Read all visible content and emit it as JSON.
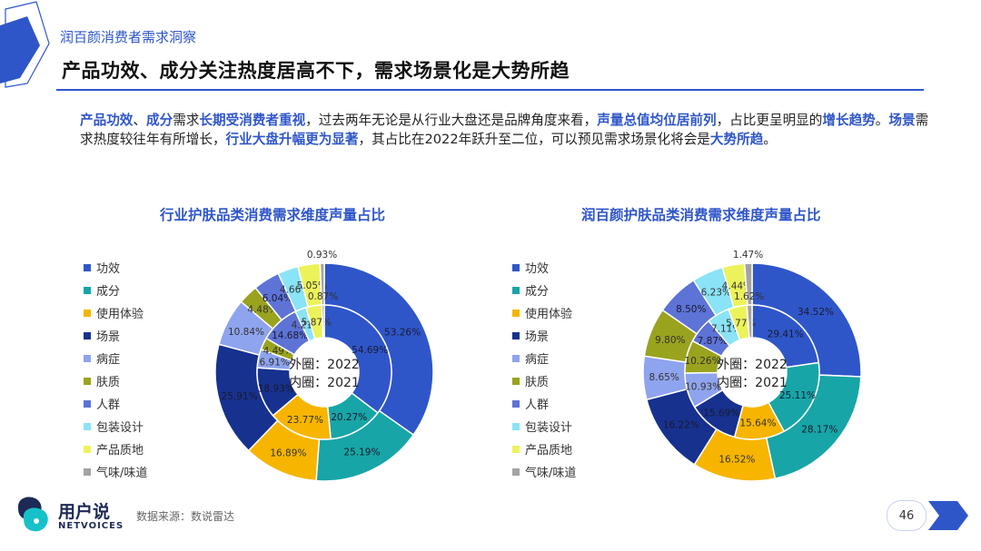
{
  "header": {
    "section_title": "润百颜消费者需求洞察",
    "page_title": "产品功效、成分关注热度居高不下，需求场景化是大势所趋"
  },
  "summary": [
    {
      "t": "产品功效",
      "hl": true
    },
    {
      "t": "、",
      "hl": false
    },
    {
      "t": "成分",
      "hl": true
    },
    {
      "t": "需求",
      "hl": false
    },
    {
      "t": "长期受消费者重视",
      "hl": true
    },
    {
      "t": "，过去两年无论是从行业大盘还是品牌角度来看，",
      "hl": false
    },
    {
      "t": "声量总值均位居前列",
      "hl": true
    },
    {
      "t": "，占比更呈明显的",
      "hl": false
    },
    {
      "t": "增长趋势",
      "hl": true
    },
    {
      "t": "。",
      "hl": false
    },
    {
      "t": "场景",
      "hl": true
    },
    {
      "t": "需求热度较往年有所增长，",
      "hl": false
    },
    {
      "t": "行业大盘升幅更为显著",
      "hl": true
    },
    {
      "t": "，其占比在2022年跃升至二位，可以预见需求场景化将会是",
      "hl": false
    },
    {
      "t": "大势所趋",
      "hl": true
    },
    {
      "t": "。",
      "hl": false
    }
  ],
  "legend_labels": [
    "功效",
    "成分",
    "使用体验",
    "场景",
    "病症",
    "肤质",
    "人群",
    "包装设计",
    "产品质地",
    "气味/味道"
  ],
  "colors": [
    "#2f56c9",
    "#17a5a7",
    "#f7b500",
    "#17318f",
    "#8fa4ee",
    "#99a31e",
    "#5d73d6",
    "#8ae3f6",
    "#ecf35a",
    "#a3a3a3"
  ],
  "chart_data": [
    {
      "type": "donut",
      "title": "行业护肤品类消费需求维度声量占比",
      "center_text": [
        "外圈：2022",
        "内圈：2021"
      ],
      "categories": [
        "功效",
        "成分",
        "使用体验",
        "场景",
        "病症",
        "肤质",
        "人群",
        "包装设计",
        "产品质地",
        "气味/味道"
      ],
      "series": [
        {
          "name": "外圈：2022",
          "values": [
            53.26,
            25.19,
            16.89,
            25.91,
            10.84,
            4.48,
            6.04,
            4.66,
            5.05,
            0.93
          ],
          "labels": [
            "53.26%",
            "25.19%",
            "16.89%",
            "25.91%",
            "10.84%",
            "4.48%",
            "6.04%",
            "4.66%",
            "5.05%",
            "0.93%"
          ]
        },
        {
          "name": "内圈：2021",
          "values": [
            54.69,
            20.27,
            23.77,
            18.93,
            6.91,
            4.49,
            14.68,
            4.21,
            5.87,
            0.87
          ],
          "labels": [
            "54.69%",
            "20.27%",
            "23.77%",
            "18.93%",
            "6.91%",
            "4.49%",
            "14.68%",
            "4.21%",
            "5.87%",
            "0.87%"
          ]
        }
      ]
    },
    {
      "type": "donut",
      "title": "润百颜护肤品类消费需求维度声量占比",
      "center_text": [
        "外圈：2022",
        "内圈：2021"
      ],
      "categories": [
        "功效",
        "成分",
        "使用体验",
        "场景",
        "病症",
        "肤质",
        "人群",
        "包装设计",
        "产品质地",
        "气味/味道"
      ],
      "series": [
        {
          "name": "外圈：2022",
          "values": [
            34.52,
            28.17,
            16.52,
            16.22,
            8.65,
            9.8,
            8.5,
            6.23,
            4.44,
            1.47
          ],
          "labels": [
            "34.52%",
            "28.17%",
            "16.52%",
            "16.22%",
            "8.65%",
            "9.80%",
            "8.50%",
            "6.23%",
            "4.44%",
            "1.47%"
          ]
        },
        {
          "name": "内圈：2021",
          "values": [
            29.41,
            25.11,
            15.64,
            15.69,
            10.93,
            10.26,
            7.87,
            7.11,
            5.77,
            1.62
          ],
          "labels": [
            "29.41%",
            "25.11%",
            "15.64%",
            "15.69%",
            "10.93%",
            "10.26%",
            "7.87%",
            "7.11%",
            "5.77%",
            "1.62%"
          ]
        }
      ]
    }
  ],
  "footer": {
    "brand_cn": "用户说",
    "brand_en": "NETVOICES",
    "source": "数据来源：数说雷达",
    "page_number": "46"
  }
}
